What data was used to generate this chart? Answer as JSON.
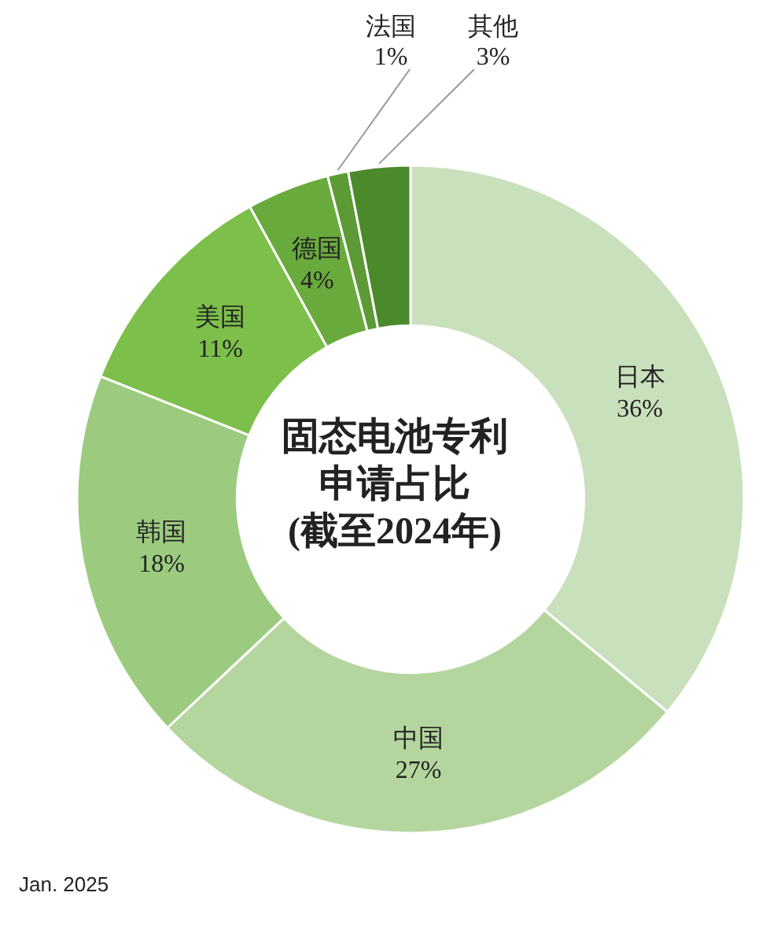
{
  "chart_data": {
    "type": "donut",
    "title": "固态电池专利申请占比",
    "subtitle": "(截至2024年)",
    "categories": [
      "日本",
      "中国",
      "韩国",
      "美国",
      "德国",
      "法国",
      "其他"
    ],
    "values": [
      36,
      27,
      18,
      11,
      4,
      1,
      3
    ],
    "colors": [
      "#c9e0bc",
      "#b4d69e",
      "#9ccb80",
      "#7cbf4a",
      "#69aa3d",
      "#5c9a36",
      "#4b8a2b"
    ],
    "value_labels": [
      "36%",
      "27%",
      "18%",
      "11%",
      "4%",
      "1%",
      "3%"
    ],
    "annotations": [
      "Jan. 2025"
    ]
  }
}
